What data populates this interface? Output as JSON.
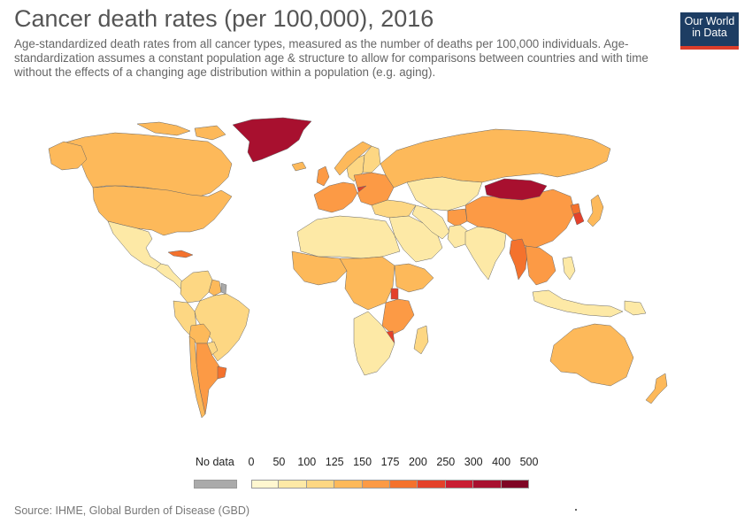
{
  "header": {
    "title": "Cancer death rates (per 100,000), 2016",
    "subtitle": "Age-standardized death rates from all cancer types, measured as the number of deaths per 100,000 individuals. Age-standardization assumes a constant population age & structure to allow for comparisons between countries and with time without the effects of a changing age distribution within a population (e.g. aging).",
    "logo_line1": "Our World",
    "logo_line2": "in Data"
  },
  "legend": {
    "no_data_label": "No data",
    "no_data_color": "#aaaaaa",
    "ticks": [
      "0",
      "50",
      "100",
      "125",
      "150",
      "175",
      "200",
      "250",
      "300",
      "400",
      "500"
    ],
    "colors": [
      "#fff7d0",
      "#fde9a6",
      "#fdd783",
      "#fdb95a",
      "#fc9a45",
      "#f4722d",
      "#e4412a",
      "#c91d32",
      "#a8102f",
      "#7f0424"
    ]
  },
  "footer": {
    "source": "Source: IHME, Global Burden of Disease (GBD)"
  },
  "regions": [
    {
      "name": "Greenland",
      "bin": 8
    },
    {
      "name": "Canada",
      "bin": 3
    },
    {
      "name": "United States",
      "bin": 3
    },
    {
      "name": "Mexico",
      "bin": 1
    },
    {
      "name": "Central America",
      "bin": 1
    },
    {
      "name": "Cuba",
      "bin": 5
    },
    {
      "name": "Colombia / Venezuela",
      "bin": 2
    },
    {
      "name": "Guyana / Suriname",
      "bin": 3
    },
    {
      "name": "French Guiana",
      "bin": -1
    },
    {
      "name": "Ecuador / Peru",
      "bin": 2
    },
    {
      "name": "Brazil",
      "bin": 2
    },
    {
      "name": "Bolivia",
      "bin": 3
    },
    {
      "name": "Paraguay",
      "bin": 2
    },
    {
      "name": "Chile",
      "bin": 3
    },
    {
      "name": "Argentina",
      "bin": 4
    },
    {
      "name": "Uruguay",
      "bin": 5
    },
    {
      "name": "Iceland",
      "bin": 3
    },
    {
      "name": "United Kingdom",
      "bin": 4
    },
    {
      "name": "Norway",
      "bin": 3
    },
    {
      "name": "Sweden",
      "bin": 2
    },
    {
      "name": "Finland",
      "bin": 2
    },
    {
      "name": "Western Europe",
      "bin": 4
    },
    {
      "name": "Hungary",
      "bin": 6
    },
    {
      "name": "Eastern Europe",
      "bin": 4
    },
    {
      "name": "Russia",
      "bin": 3
    },
    {
      "name": "Kazakhstan / Central Asia",
      "bin": 1
    },
    {
      "name": "Turkey / Caucasus",
      "bin": 2
    },
    {
      "name": "Middle East",
      "bin": 1
    },
    {
      "name": "Iran",
      "bin": 1
    },
    {
      "name": "Afghanistan",
      "bin": 4
    },
    {
      "name": "Pakistan",
      "bin": 1
    },
    {
      "name": "India",
      "bin": 1
    },
    {
      "name": "China",
      "bin": 4
    },
    {
      "name": "Mongolia",
      "bin": 8
    },
    {
      "name": "North Korea",
      "bin": 5
    },
    {
      "name": "Korea",
      "bin": 6
    },
    {
      "name": "Japan",
      "bin": 3
    },
    {
      "name": "Myanmar",
      "bin": 5
    },
    {
      "name": "Thailand / Indochina",
      "bin": 4
    },
    {
      "name": "Malaysia / Indonesia",
      "bin": 1
    },
    {
      "name": "Philippines",
      "bin": 1
    },
    {
      "name": "Papua New Guinea",
      "bin": 1
    },
    {
      "name": "Australia",
      "bin": 3
    },
    {
      "name": "New Zealand",
      "bin": 3
    },
    {
      "name": "North Africa",
      "bin": 1
    },
    {
      "name": "West Africa",
      "bin": 3
    },
    {
      "name": "Central Africa",
      "bin": 3
    },
    {
      "name": "Ethiopia / Somalia",
      "bin": 3
    },
    {
      "name": "Uganda",
      "bin": 6
    },
    {
      "name": "East Africa",
      "bin": 4
    },
    {
      "name": "Zimbabwe",
      "bin": 6
    },
    {
      "name": "Southern Africa",
      "bin": 1
    },
    {
      "name": "Madagascar",
      "bin": 2
    }
  ]
}
